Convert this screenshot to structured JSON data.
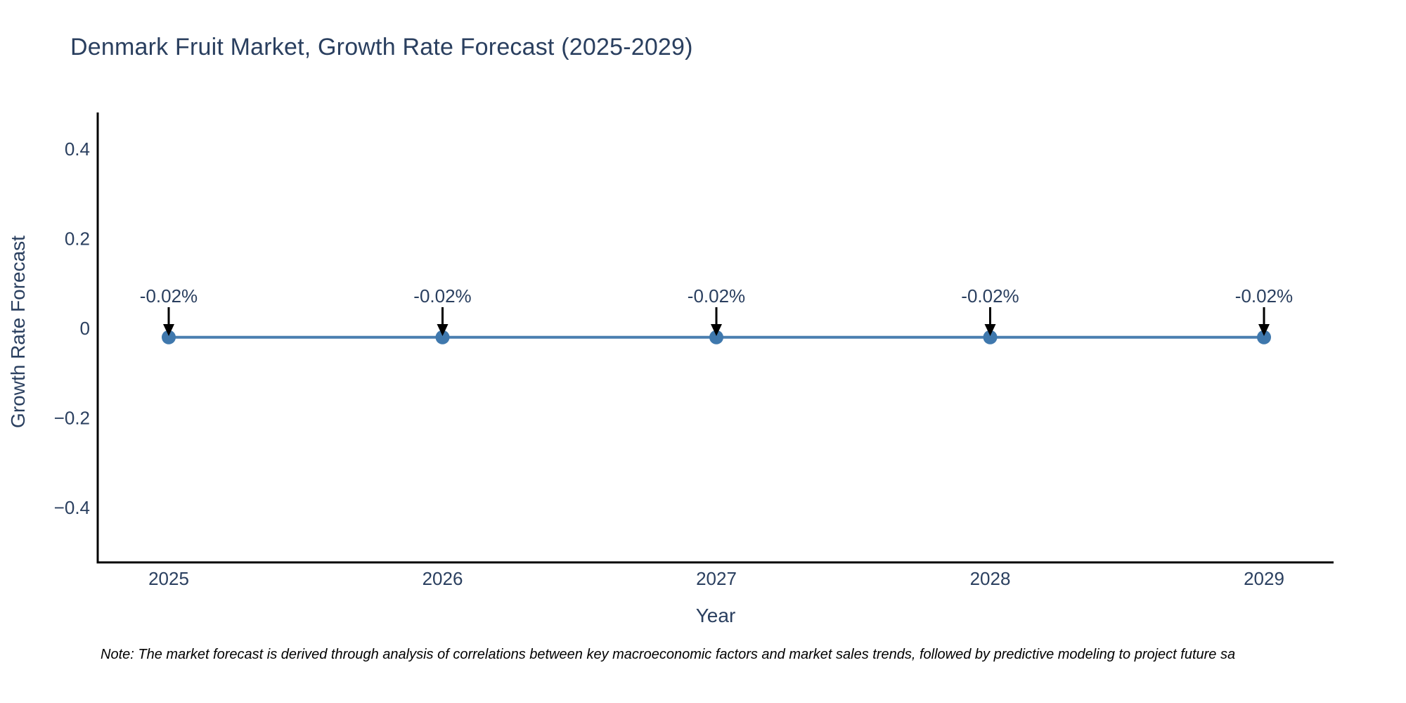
{
  "chart_data": {
    "type": "line",
    "title": "Denmark Fruit Market, Growth Rate Forecast (2025-2029)",
    "xlabel": "Year",
    "ylabel": "Growth Rate Forecast",
    "categories": [
      "2025",
      "2026",
      "2027",
      "2028",
      "2029"
    ],
    "series": [
      {
        "name": "Growth Rate Forecast",
        "values": [
          -0.02,
          -0.02,
          -0.02,
          -0.02,
          -0.02
        ]
      }
    ],
    "data_labels": [
      "-0.02%",
      "-0.02%",
      "-0.02%",
      "-0.02%",
      "-0.02%"
    ],
    "yticks": [
      {
        "label": "0.4",
        "value": 0.4
      },
      {
        "label": "0.2",
        "value": 0.2
      },
      {
        "label": "0",
        "value": 0
      },
      {
        "label": "−0.2",
        "value": -0.2
      },
      {
        "label": "−0.4",
        "value": -0.4
      }
    ],
    "ylim": [
      -0.52,
      0.48
    ],
    "grid": false,
    "legend": "none",
    "marker_style": "circle",
    "annotation_arrows": true
  },
  "note": "Note: The market forecast is derived through analysis of correlations between key macroeconomic factors and market sales trends, followed by predictive modeling to project future sa",
  "colors": {
    "title_text": "#2a3f5f",
    "axis_text": "#2a3f5f",
    "annotation_text": "#2a3f5f",
    "line": "#4a7fb0",
    "marker": "#3f78ad",
    "axis_line": "#000000",
    "arrow": "#000000",
    "background": "#ffffff"
  }
}
